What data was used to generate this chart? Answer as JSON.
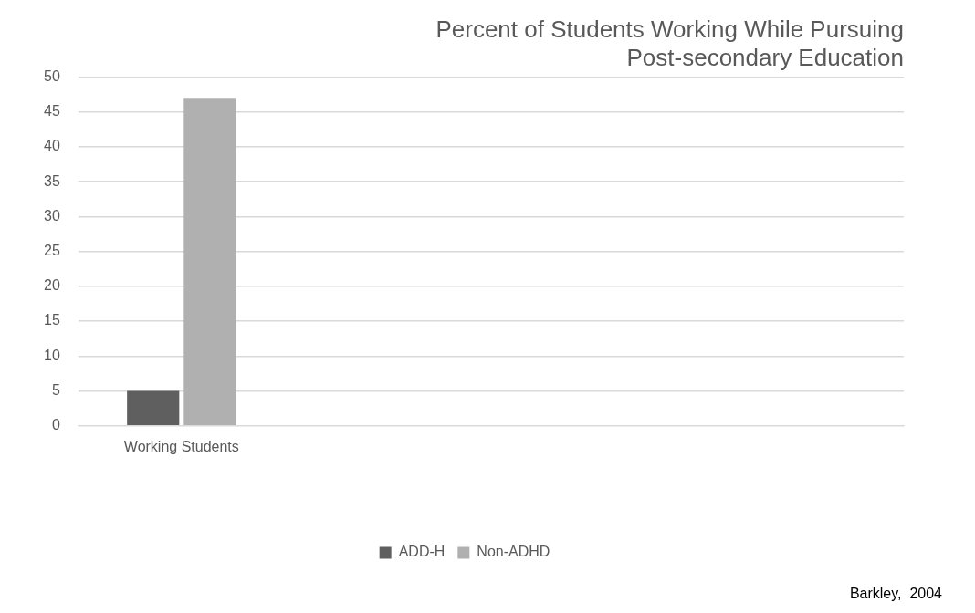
{
  "chart_data": {
    "type": "bar",
    "title": "Percent of Students Working While Pursuing Post-secondary Education",
    "categories": [
      "Working Students",
      null,
      null,
      null
    ],
    "series": [
      {
        "name": "ADD-H",
        "color": "#5f5f5f",
        "values": [
          5,
          null,
          null,
          null
        ]
      },
      {
        "name": "Non-ADHD",
        "color": "#b0b0b0",
        "values": [
          47,
          null,
          null,
          null
        ]
      }
    ],
    "ylim": [
      0,
      50
    ],
    "yticks": [
      0,
      5,
      10,
      15,
      20,
      25,
      30,
      35,
      40,
      45,
      50
    ],
    "grid": "y",
    "legend": "bottom",
    "annotations": [
      "Barkley,  2004"
    ]
  }
}
